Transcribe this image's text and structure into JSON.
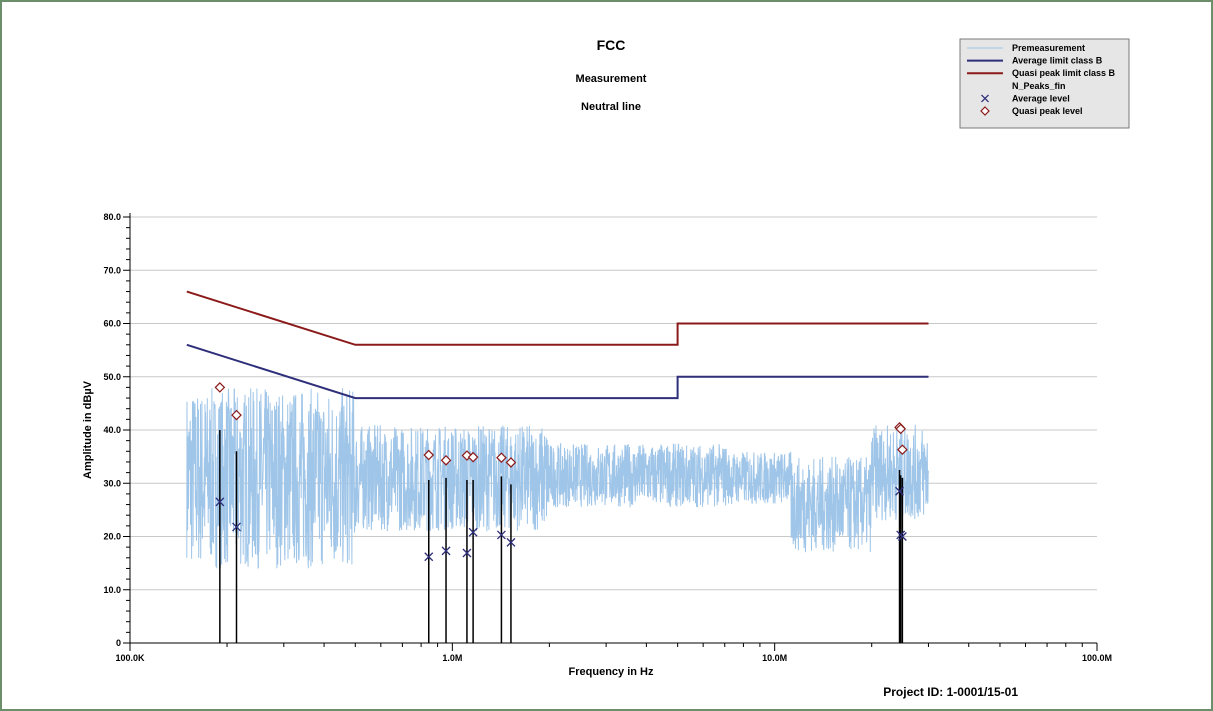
{
  "chart_data": {
    "type": "line",
    "title": "FCC",
    "subtitle_1": "Measurement",
    "subtitle_2": "Neutral line",
    "xlabel": "Frequency in Hz",
    "ylabel": "Amplitude in dBµV",
    "x_scale": "log",
    "xlim": [
      100000,
      100000000
    ],
    "ylim": [
      0,
      80
    ],
    "grid": true,
    "legend_position": "top-right",
    "x_ticks": [
      {
        "value": 100000,
        "label": "100.0K"
      },
      {
        "value": 1000000,
        "label": "1.0M"
      },
      {
        "value": 10000000,
        "label": "10.0M"
      },
      {
        "value": 100000000,
        "label": "100.0M"
      }
    ],
    "y_ticks": [
      {
        "value": 0,
        "label": "0"
      },
      {
        "value": 10,
        "label": "10.0"
      },
      {
        "value": 20,
        "label": "20.0"
      },
      {
        "value": 30,
        "label": "30.0"
      },
      {
        "value": 40,
        "label": "40.0"
      },
      {
        "value": 50,
        "label": "50.0"
      },
      {
        "value": 60,
        "label": "60.0"
      },
      {
        "value": 70,
        "label": "70.0"
      },
      {
        "value": 80,
        "label": "80.0"
      }
    ],
    "legend": [
      {
        "label": "Premeasurement",
        "symbol": "line",
        "color": "#9fc5e8"
      },
      {
        "label": "Average limit class B",
        "symbol": "line",
        "color": "#2e2e7a"
      },
      {
        "label": "Quasi peak limit class B",
        "symbol": "line",
        "color": "#8b1a1a"
      },
      {
        "label": "N_Peaks_fin",
        "symbol": "none",
        "color": "#000000"
      },
      {
        "label": "Average level",
        "symbol": "x",
        "color": "#2e2e7a"
      },
      {
        "label": "Quasi peak level",
        "symbol": "diamond",
        "color": "#8b1a1a"
      }
    ],
    "series": [
      {
        "name": "Average limit class B",
        "color": "#2e2e7a",
        "x": [
          150000,
          500000,
          5000000,
          5000000,
          30000000
        ],
        "values": [
          56,
          46,
          46,
          50,
          50
        ]
      },
      {
        "name": "Quasi peak limit class B",
        "color": "#8b1a1a",
        "x": [
          150000,
          500000,
          5000000,
          5000000,
          30000000
        ],
        "values": [
          66,
          56,
          56,
          60,
          60
        ]
      },
      {
        "name": "Premeasurement",
        "color": "#9fc5e8",
        "x_range": [
          150000,
          30000000
        ],
        "description_points": [
          [
            150000,
            16
          ],
          [
            160000,
            45
          ],
          [
            170000,
            47
          ],
          [
            180000,
            13
          ],
          [
            190000,
            50
          ],
          [
            200000,
            21
          ],
          [
            210000,
            48
          ],
          [
            230000,
            20
          ],
          [
            260000,
            42
          ],
          [
            300000,
            25
          ],
          [
            350000,
            40
          ],
          [
            400000,
            22
          ],
          [
            500000,
            40
          ],
          [
            700000,
            22
          ],
          [
            1000000,
            40
          ],
          [
            1500000,
            25
          ],
          [
            2000000,
            38
          ],
          [
            3000000,
            27
          ],
          [
            5000000,
            40
          ],
          [
            7000000,
            28
          ],
          [
            10000000,
            34
          ],
          [
            15000000,
            18
          ],
          [
            20000000,
            35
          ],
          [
            25000000,
            42
          ],
          [
            30000000,
            30
          ]
        ]
      }
    ],
    "peaks": {
      "name": "N_Peaks_fin",
      "color": "#000000",
      "points": [
        {
          "x": 190000,
          "quasi_peak": 48.0,
          "average": 26.5,
          "line_top": 40.0
        },
        {
          "x": 214000,
          "quasi_peak": 42.8,
          "average": 21.8,
          "line_top": 36.0
        },
        {
          "x": 845000,
          "quasi_peak": 35.3,
          "average": 16.2,
          "line_top": 30.6
        },
        {
          "x": 956000,
          "quasi_peak": 34.3,
          "average": 17.3,
          "line_top": 31.0
        },
        {
          "x": 1110000,
          "quasi_peak": 35.2,
          "average": 16.9,
          "line_top": 30.6
        },
        {
          "x": 1160000,
          "quasi_peak": 34.9,
          "average": 20.8,
          "line_top": 30.6
        },
        {
          "x": 1420000,
          "quasi_peak": 34.8,
          "average": 20.3,
          "line_top": 31.3
        },
        {
          "x": 1520000,
          "quasi_peak": 33.9,
          "average": 18.9,
          "line_top": 29.8
        },
        {
          "x": 24400000,
          "quasi_peak": 40.5,
          "average": 28.5,
          "line_top": 32.5
        },
        {
          "x": 24600000,
          "quasi_peak": 40.2,
          "average": 20.3,
          "line_top": 31.5
        },
        {
          "x": 24900000,
          "quasi_peak": 36.3,
          "average": 20.0,
          "line_top": 31.0
        }
      ]
    },
    "annotations": [
      "Project ID: 1-0001/15-01"
    ]
  }
}
